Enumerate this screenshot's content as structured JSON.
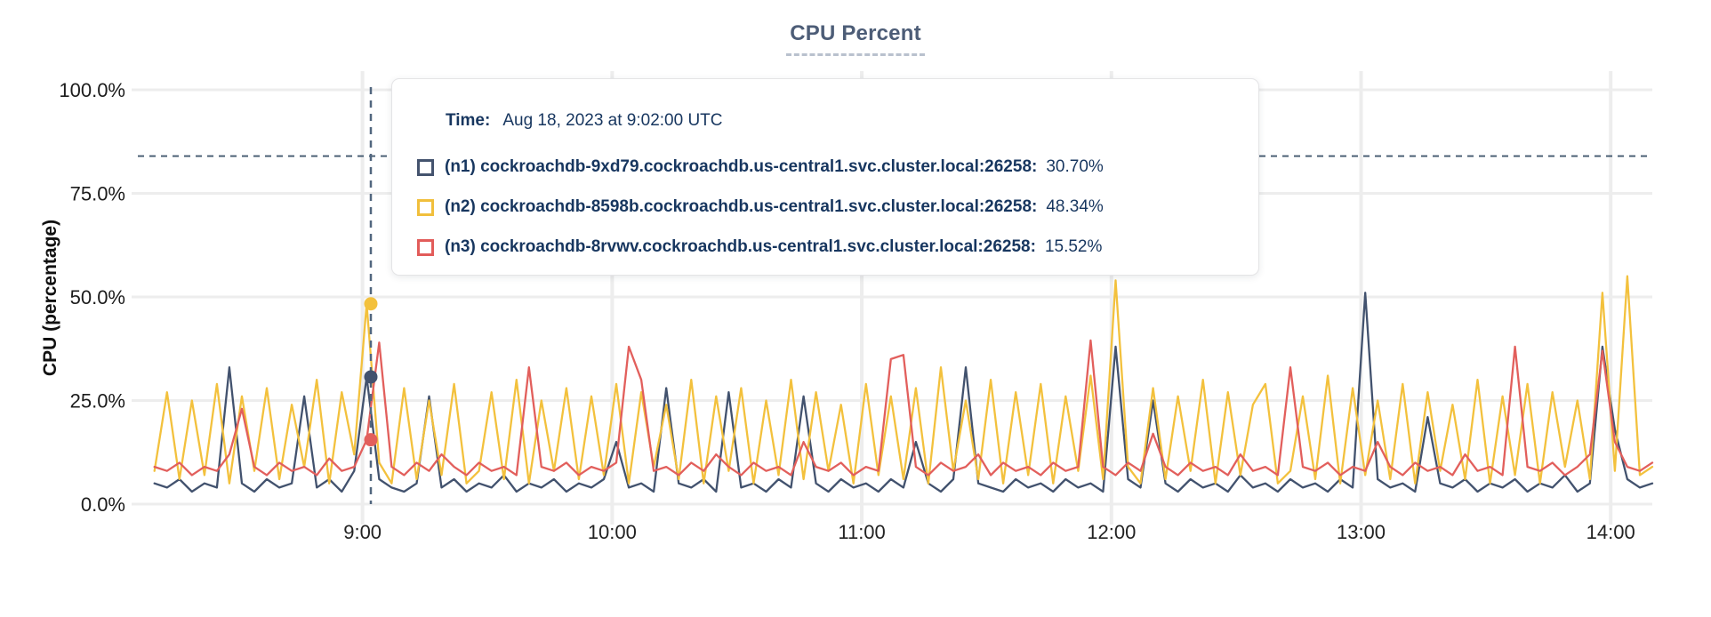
{
  "page": {
    "title": "CPU Percent"
  },
  "colors": {
    "accent_navy": "#42526e",
    "accent_yellow": "#f3c13d",
    "accent_red": "#e25f5c",
    "grid": "#ededed",
    "threshold": "#41576d",
    "hover_line": "#52677f",
    "tooltip_text": "#17365f",
    "title_text": "#4d5d77"
  },
  "tooltip": {
    "time_label": "Time:",
    "time_value": "Aug 18, 2023 at 9:02:00 UTC",
    "rows": [
      {
        "series": "n1",
        "color": "#44536e",
        "name": "(n1) cockroachdb-9xd79.cockroachdb.us-central1.svc.cluster.local:26258:",
        "value": "30.70%"
      },
      {
        "series": "n2",
        "color": "#f1bf3c",
        "name": "(n2) cockroachdb-8598b.cockroachdb.us-central1.svc.cluster.local:26258:",
        "value": "48.34%"
      },
      {
        "series": "n3",
        "color": "#e25c5a",
        "name": "(n3) cockroachdb-8rvwv.cockroachdb.us-central1.svc.cluster.local:26258:",
        "value": "15.52%"
      }
    ]
  },
  "chart_data": {
    "type": "line",
    "title": "CPU Percent",
    "xlabel": "",
    "ylabel": "CPU (percentage)",
    "grid": true,
    "x_axis": {
      "tick_labels": [
        "9:00",
        "10:00",
        "11:00",
        "12:00",
        "13:00",
        "14:00"
      ],
      "tick_minutes": [
        540,
        600,
        660,
        720,
        780,
        840
      ]
    },
    "y_axis": {
      "tick_labels": [
        "0.0%",
        "25.0%",
        "50.0%",
        "75.0%",
        "100.0%"
      ],
      "tick_values": [
        0,
        25,
        50,
        75,
        100
      ],
      "range": [
        0,
        100
      ]
    },
    "threshold_line": {
      "value_pct": 84,
      "style": "dashed",
      "color": "#41576d"
    },
    "hover": {
      "time_min": 542,
      "time_text": "9:02:00",
      "values_pct": {
        "n1": 30.7,
        "n2": 48.34,
        "n3": 15.52
      }
    },
    "sampling": {
      "start_min": 490,
      "step_min": 3
    },
    "series": [
      {
        "id": "n1",
        "color": "#42526e",
        "values": [
          5,
          4,
          6,
          3,
          5,
          4,
          33,
          5,
          3,
          6,
          4,
          5,
          26,
          4,
          6,
          3,
          8,
          30.7,
          6,
          4,
          3,
          5,
          26,
          4,
          6,
          3,
          5,
          4,
          7,
          3,
          5,
          4,
          6,
          3,
          5,
          4,
          6,
          15,
          4,
          5,
          3,
          28,
          5,
          4,
          6,
          3,
          27,
          4,
          5,
          3,
          6,
          4,
          26,
          5,
          3,
          6,
          4,
          5,
          3,
          6,
          4,
          15,
          5,
          3,
          6,
          33,
          5,
          4,
          3,
          6,
          4,
          5,
          3,
          6,
          4,
          5,
          3,
          38,
          6,
          4,
          25,
          5,
          3,
          6,
          4,
          5,
          3,
          7,
          4,
          5,
          3,
          6,
          4,
          5,
          3,
          6,
          4,
          51,
          6,
          4,
          5,
          3,
          21,
          5,
          4,
          6,
          3,
          5,
          4,
          6,
          3,
          5,
          4,
          7,
          3,
          5,
          38,
          18,
          6,
          4,
          5
        ]
      },
      {
        "id": "n2",
        "color": "#f3c13d",
        "values": [
          8,
          27,
          6,
          25,
          7,
          29,
          5,
          26,
          8,
          28,
          6,
          24,
          9,
          30,
          5,
          27,
          12,
          48.3,
          10,
          5,
          28,
          6,
          25,
          7,
          29,
          5,
          8,
          27,
          6,
          30,
          5,
          25,
          8,
          28,
          6,
          26,
          7,
          29,
          5,
          27,
          9,
          24,
          6,
          30,
          5,
          26,
          8,
          28,
          5,
          25,
          7,
          30,
          6,
          27,
          8,
          24,
          5,
          29,
          7,
          26,
          6,
          28,
          5,
          33,
          8,
          25,
          6,
          30,
          5,
          27,
          7,
          29,
          5,
          26,
          8,
          31,
          6,
          54,
          9,
          5,
          28,
          6,
          26,
          8,
          30,
          5,
          27,
          7,
          24,
          29,
          5,
          8,
          26,
          6,
          31,
          5,
          28,
          7,
          25,
          6,
          29,
          5,
          27,
          8,
          24,
          6,
          30,
          5,
          26,
          7,
          29,
          5,
          27,
          9,
          25,
          6,
          51,
          8,
          55,
          7,
          9
        ]
      },
      {
        "id": "n3",
        "color": "#e25f5c",
        "values": [
          9,
          8,
          10,
          7,
          9,
          8,
          12,
          23,
          9,
          7,
          10,
          8,
          9,
          7,
          11,
          8,
          9,
          15.5,
          39,
          9,
          7,
          10,
          8,
          12,
          9,
          7,
          10,
          8,
          9,
          7,
          33,
          9,
          8,
          10,
          7,
          9,
          8,
          10,
          38,
          30,
          8,
          9,
          7,
          10,
          8,
          12,
          9,
          7,
          10,
          8,
          9,
          7,
          15,
          9,
          8,
          10,
          7,
          9,
          8,
          35,
          36,
          9,
          7,
          10,
          8,
          9,
          12,
          7,
          10,
          8,
          9,
          7,
          10,
          8,
          9,
          39.5,
          9,
          7,
          10,
          8,
          17,
          9,
          7,
          10,
          8,
          9,
          7,
          12,
          8,
          9,
          7,
          33,
          9,
          8,
          10,
          7,
          9,
          8,
          15,
          9,
          7,
          10,
          8,
          9,
          7,
          12,
          8,
          9,
          7,
          38,
          9,
          8,
          10,
          7,
          9,
          12,
          37,
          15,
          9,
          8,
          10
        ]
      }
    ]
  }
}
